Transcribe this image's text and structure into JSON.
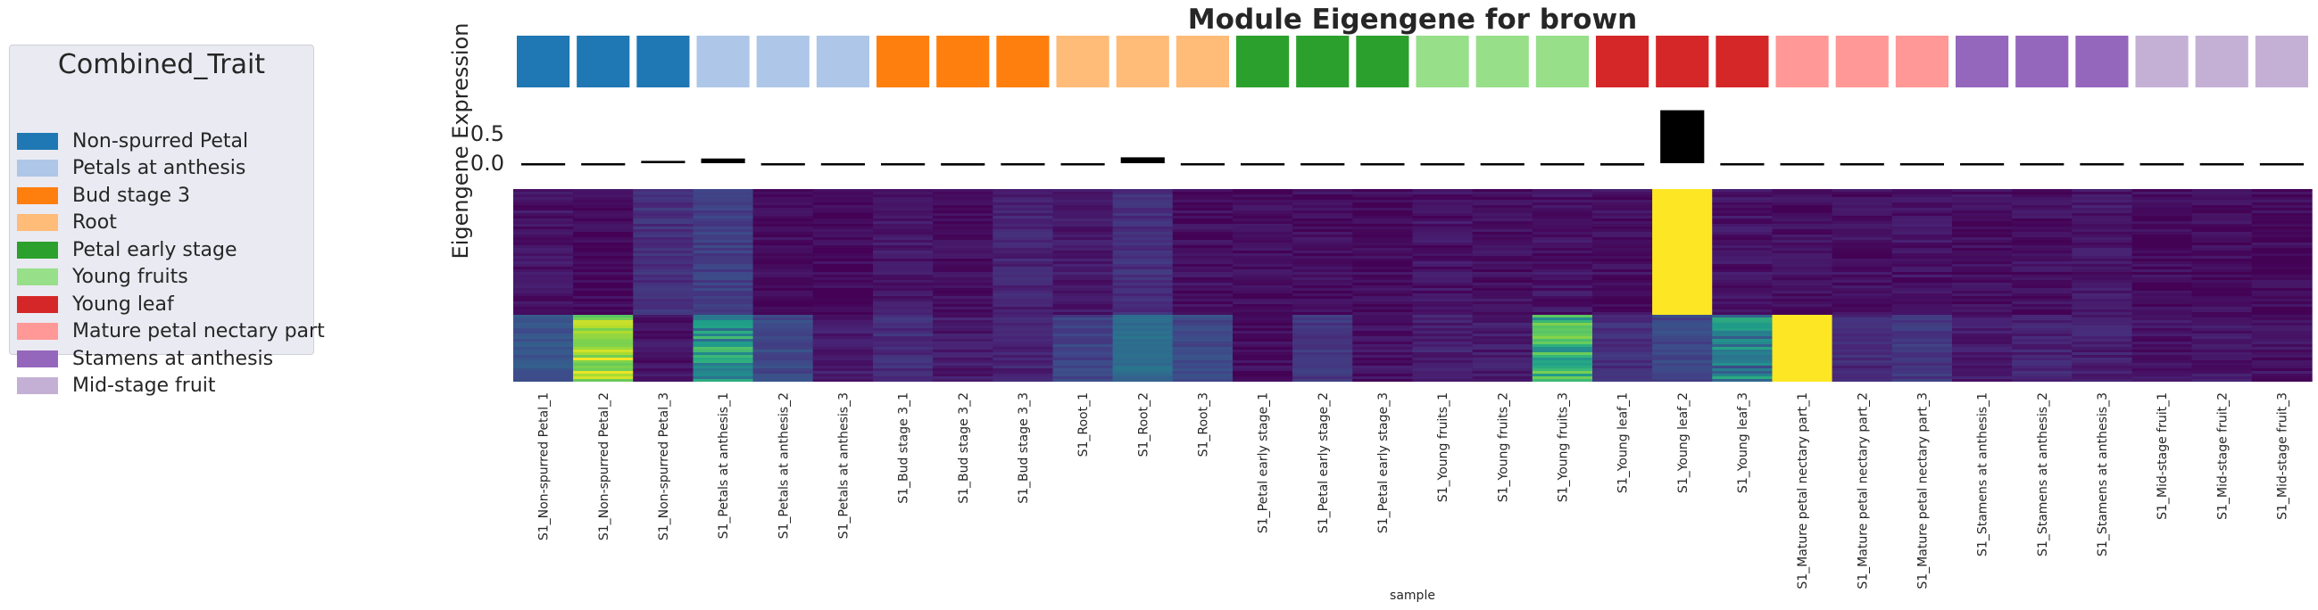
{
  "chart_data": {
    "type": "heatmap",
    "title": "Module Eigengene for brown",
    "xlabel": "sample",
    "ylabel": "Eigengene Expression",
    "legend": {
      "title": "Combined_Trait",
      "placement": "left",
      "entries": [
        {
          "label": "Non-spurred Petal",
          "color": "#1f77b4"
        },
        {
          "label": "Petals at anthesis",
          "color": "#aec7e8"
        },
        {
          "label": "Bud stage 3",
          "color": "#ff7f0e"
        },
        {
          "label": "Root",
          "color": "#ffbb78"
        },
        {
          "label": "Petal early stage",
          "color": "#2ca02c"
        },
        {
          "label": "Young fruits",
          "color": "#98df8a"
        },
        {
          "label": "Young leaf",
          "color": "#d62728"
        },
        {
          "label": "Mature petal nectary part",
          "color": "#ff9896"
        },
        {
          "label": "Stamens at anthesis",
          "color": "#9467bd"
        },
        {
          "label": "Mid-stage fruit",
          "color": "#c5b0d5"
        }
      ]
    },
    "samples": [
      "S1_Non-spurred Petal_1",
      "S1_Non-spurred Petal_2",
      "S1_Non-spurred Petal_3",
      "S1_Petals at anthesis_1",
      "S1_Petals at anthesis_2",
      "S1_Petals at anthesis_3",
      "S1_Bud stage 3_1",
      "S1_Bud stage 3_2",
      "S1_Bud stage 3_3",
      "S1_Root_1",
      "S1_Root_2",
      "S1_Root_3",
      "S1_Petal early stage_1",
      "S1_Petal early stage_2",
      "S1_Petal early stage_3",
      "S1_Young fruits_1",
      "S1_Young fruits_2",
      "S1_Young fruits_3",
      "S1_Young leaf_1",
      "S1_Young leaf_2",
      "S1_Young leaf_3",
      "S1_Mature petal nectary part_1",
      "S1_Mature petal nectary part_2",
      "S1_Mature petal nectary part_3",
      "S1_Stamens at anthesis_1",
      "S1_Stamens at anthesis_2",
      "S1_Stamens at anthesis_3",
      "S1_Mid-stage fruit_1",
      "S1_Mid-stage fruit_2",
      "S1_Mid-stage fruit_3"
    ],
    "trait_colors": [
      "#1f77b4",
      "#1f77b4",
      "#1f77b4",
      "#aec7e8",
      "#aec7e8",
      "#aec7e8",
      "#ff7f0e",
      "#ff7f0e",
      "#ff7f0e",
      "#ffbb78",
      "#ffbb78",
      "#ffbb78",
      "#2ca02c",
      "#2ca02c",
      "#2ca02c",
      "#98df8a",
      "#98df8a",
      "#98df8a",
      "#d62728",
      "#d62728",
      "#d62728",
      "#ff9896",
      "#ff9896",
      "#ff9896",
      "#9467bd",
      "#9467bd",
      "#9467bd",
      "#c5b0d5",
      "#c5b0d5",
      "#c5b0d5"
    ],
    "eigengene": [
      -0.02,
      -0.02,
      0.04,
      0.08,
      -0.02,
      -0.03,
      -0.01,
      -0.04,
      -0.01,
      -0.02,
      0.1,
      -0.02,
      -0.03,
      -0.03,
      -0.03,
      -0.01,
      -0.02,
      -0.02,
      -0.04,
      0.9,
      -0.01,
      -0.02,
      -0.02,
      -0.01,
      -0.03,
      -0.02,
      -0.01,
      -0.03,
      -0.03,
      -0.03
    ],
    "bar_yticks": [
      "0.5",
      "0.0"
    ],
    "bar_ylim": [
      -0.2,
      1.0
    ],
    "heatmap_top_block": [
      0.05,
      0.02,
      0.14,
      0.18,
      0.03,
      0.02,
      0.06,
      0.03,
      0.1,
      0.07,
      0.14,
      0.04,
      0.03,
      0.03,
      0.03,
      0.05,
      0.04,
      0.05,
      0.04,
      1.0,
      0.05,
      0.04,
      0.04,
      0.05,
      0.04,
      0.04,
      0.06,
      0.03,
      0.03,
      0.03
    ],
    "heatmap_bottom_block": [
      0.27,
      0.85,
      0.05,
      0.53,
      0.22,
      0.08,
      0.13,
      0.07,
      0.1,
      0.2,
      0.35,
      0.22,
      0.03,
      0.16,
      0.05,
      0.09,
      0.07,
      0.62,
      0.14,
      0.22,
      0.42,
      1.0,
      0.12,
      0.16,
      0.08,
      0.1,
      0.09,
      0.05,
      0.06,
      0.04
    ],
    "colormap": "viridis"
  }
}
